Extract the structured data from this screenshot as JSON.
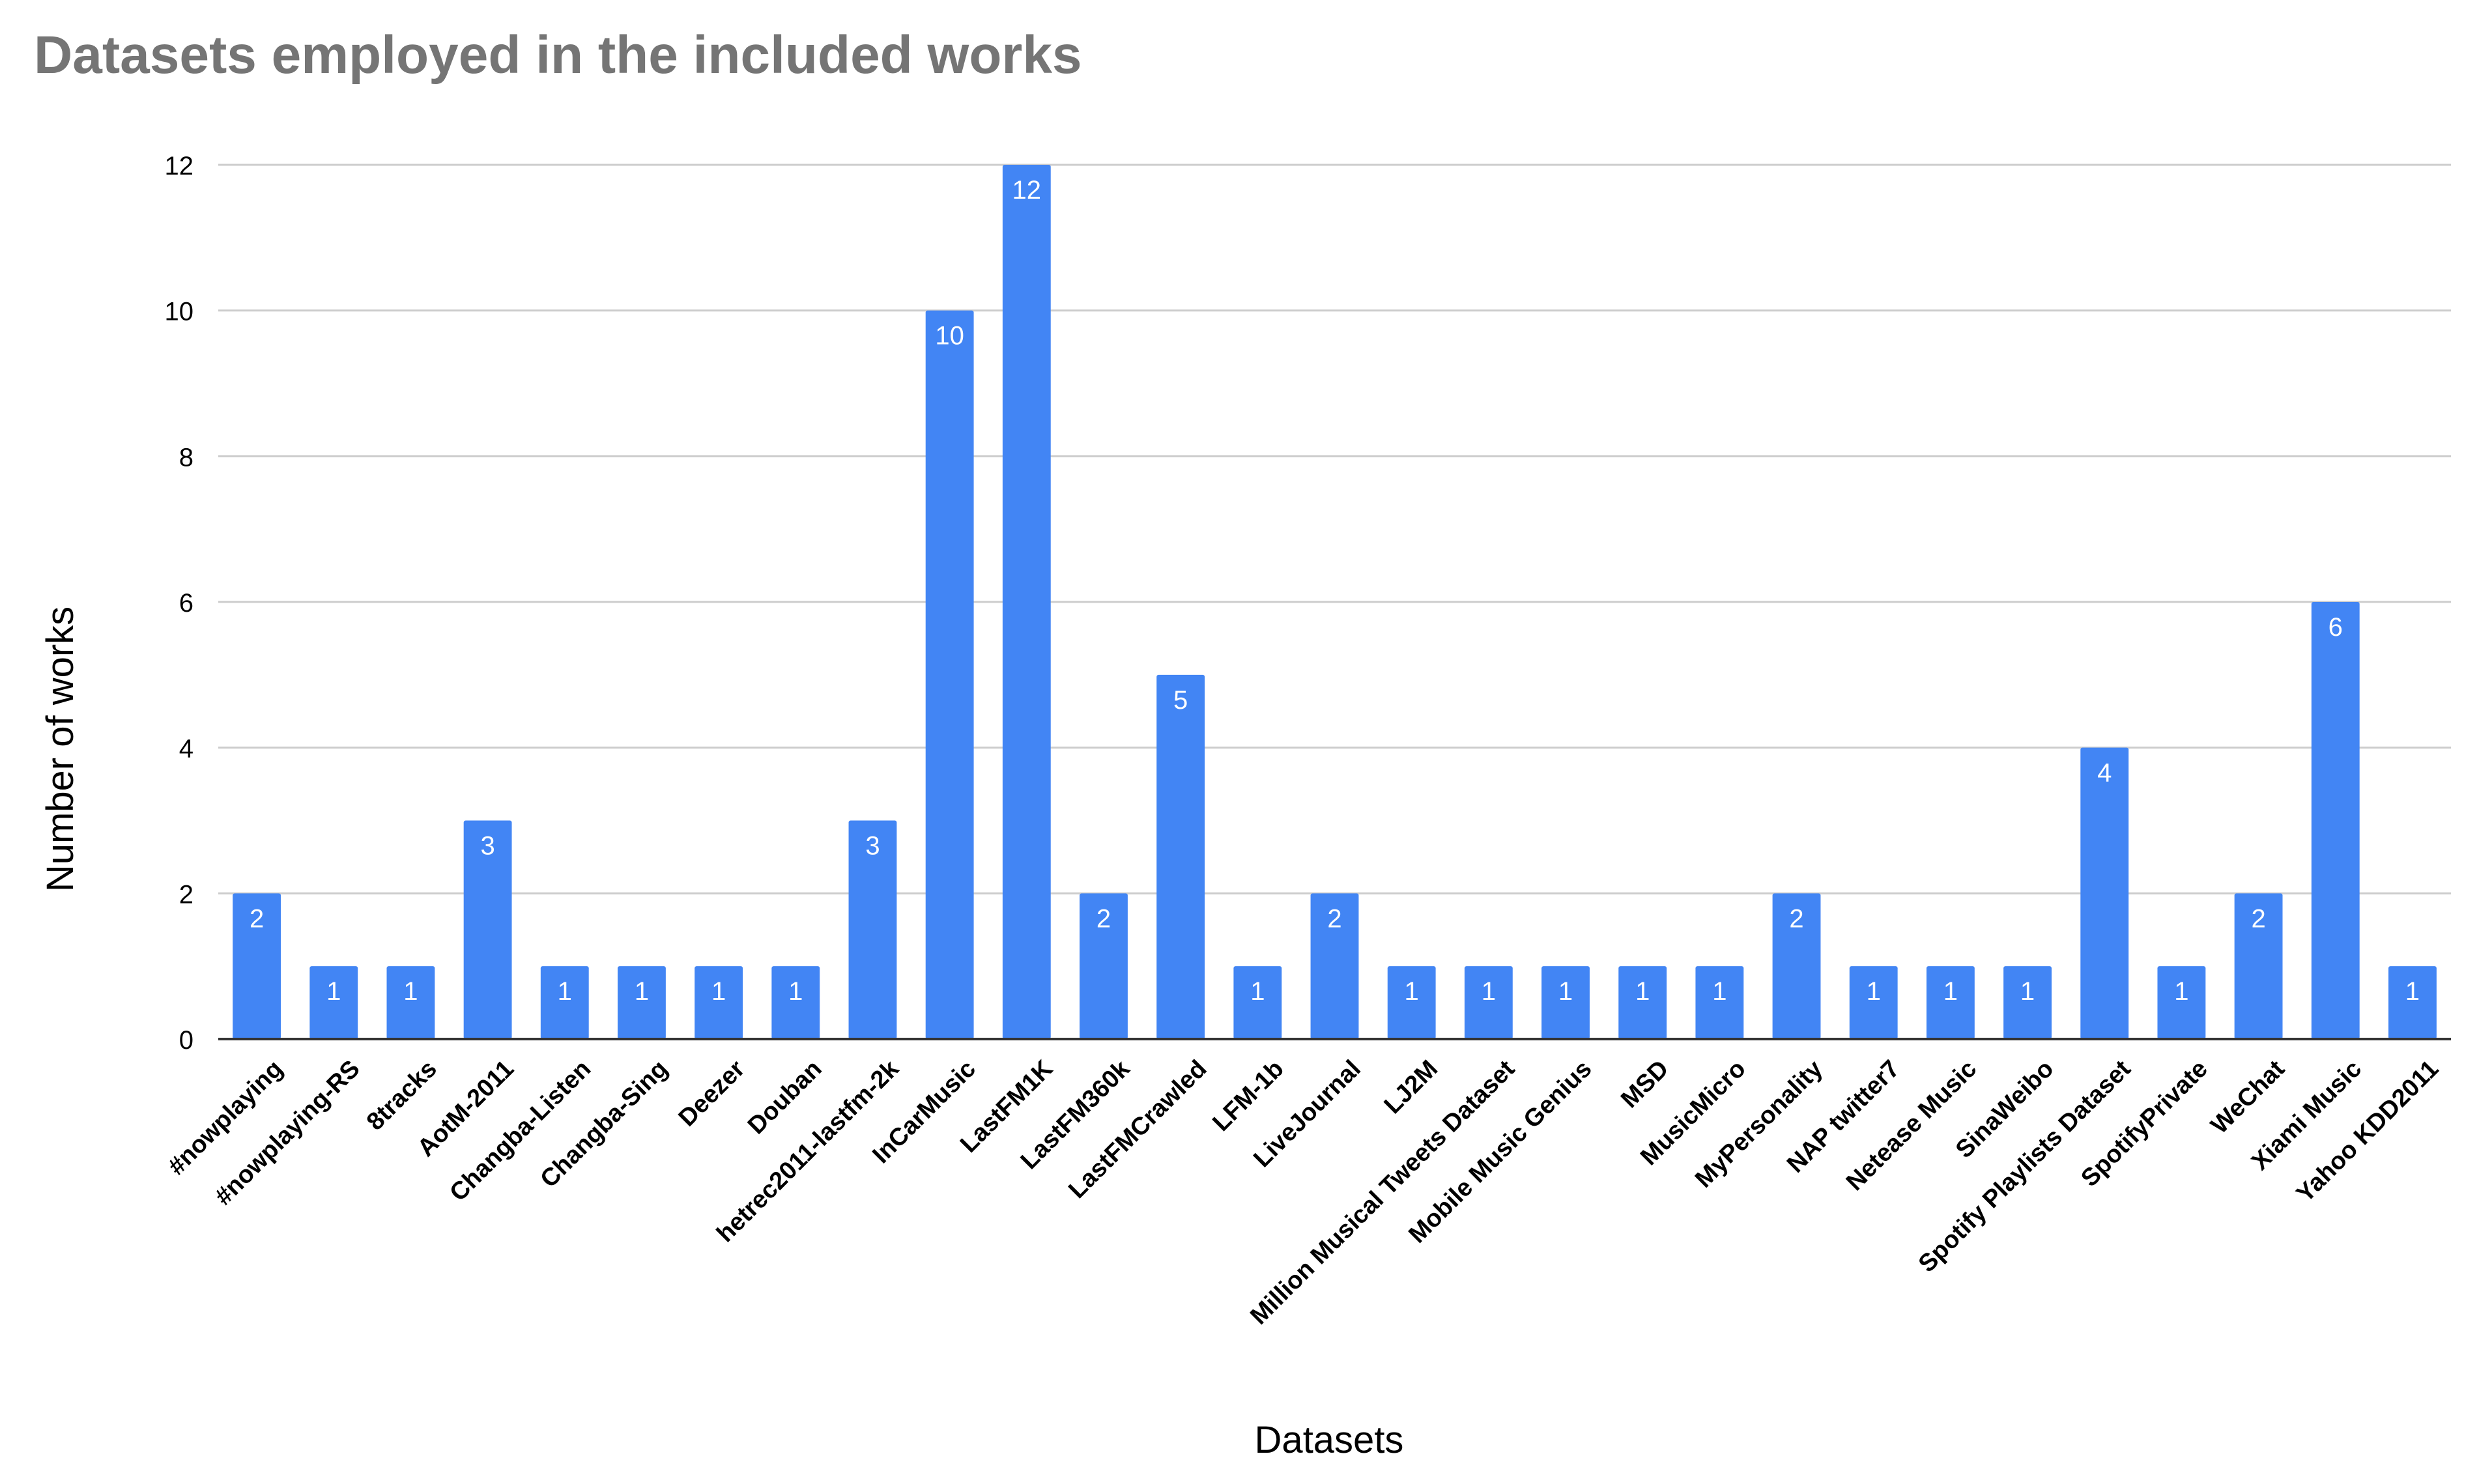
{
  "chart_data": {
    "type": "bar",
    "title": "Datasets employed in the included works",
    "xlabel": "Datasets",
    "ylabel": "Number of works",
    "ylim": [
      0,
      12
    ],
    "yticks": [
      0,
      2,
      4,
      6,
      8,
      10,
      12
    ],
    "grid": true,
    "legend": "none",
    "bar_color": "#4285F4",
    "categories": [
      "#nowplaying",
      "#nowplaying-RS",
      "8tracks",
      "AotM-2011",
      "Changba-Listen",
      "Changba-Sing",
      "Deezer",
      "Douban",
      "hetrec2011-lastfm-2k",
      "InCarMusic",
      "LastFM1K",
      "LastFM360k",
      "LastFMCrawled",
      "LFM-1b",
      "LiveJournal",
      "LJ2M",
      "Million Musical Tweets Dataset",
      "Mobile Music Genius",
      "MSD",
      "MusicMicro",
      "MyPersonality",
      "NAP twitter7",
      "Netease Music",
      "SinaWeibo",
      "Spotify Playlists Dataset",
      "SpotifyPrivate",
      "WeChat",
      "Xiami Music",
      "Yahoo KDD2011"
    ],
    "values": [
      2,
      1,
      1,
      3,
      1,
      1,
      1,
      1,
      3,
      10,
      12,
      2,
      5,
      1,
      2,
      1,
      1,
      1,
      1,
      1,
      2,
      1,
      1,
      1,
      4,
      1,
      2,
      6,
      1
    ]
  }
}
